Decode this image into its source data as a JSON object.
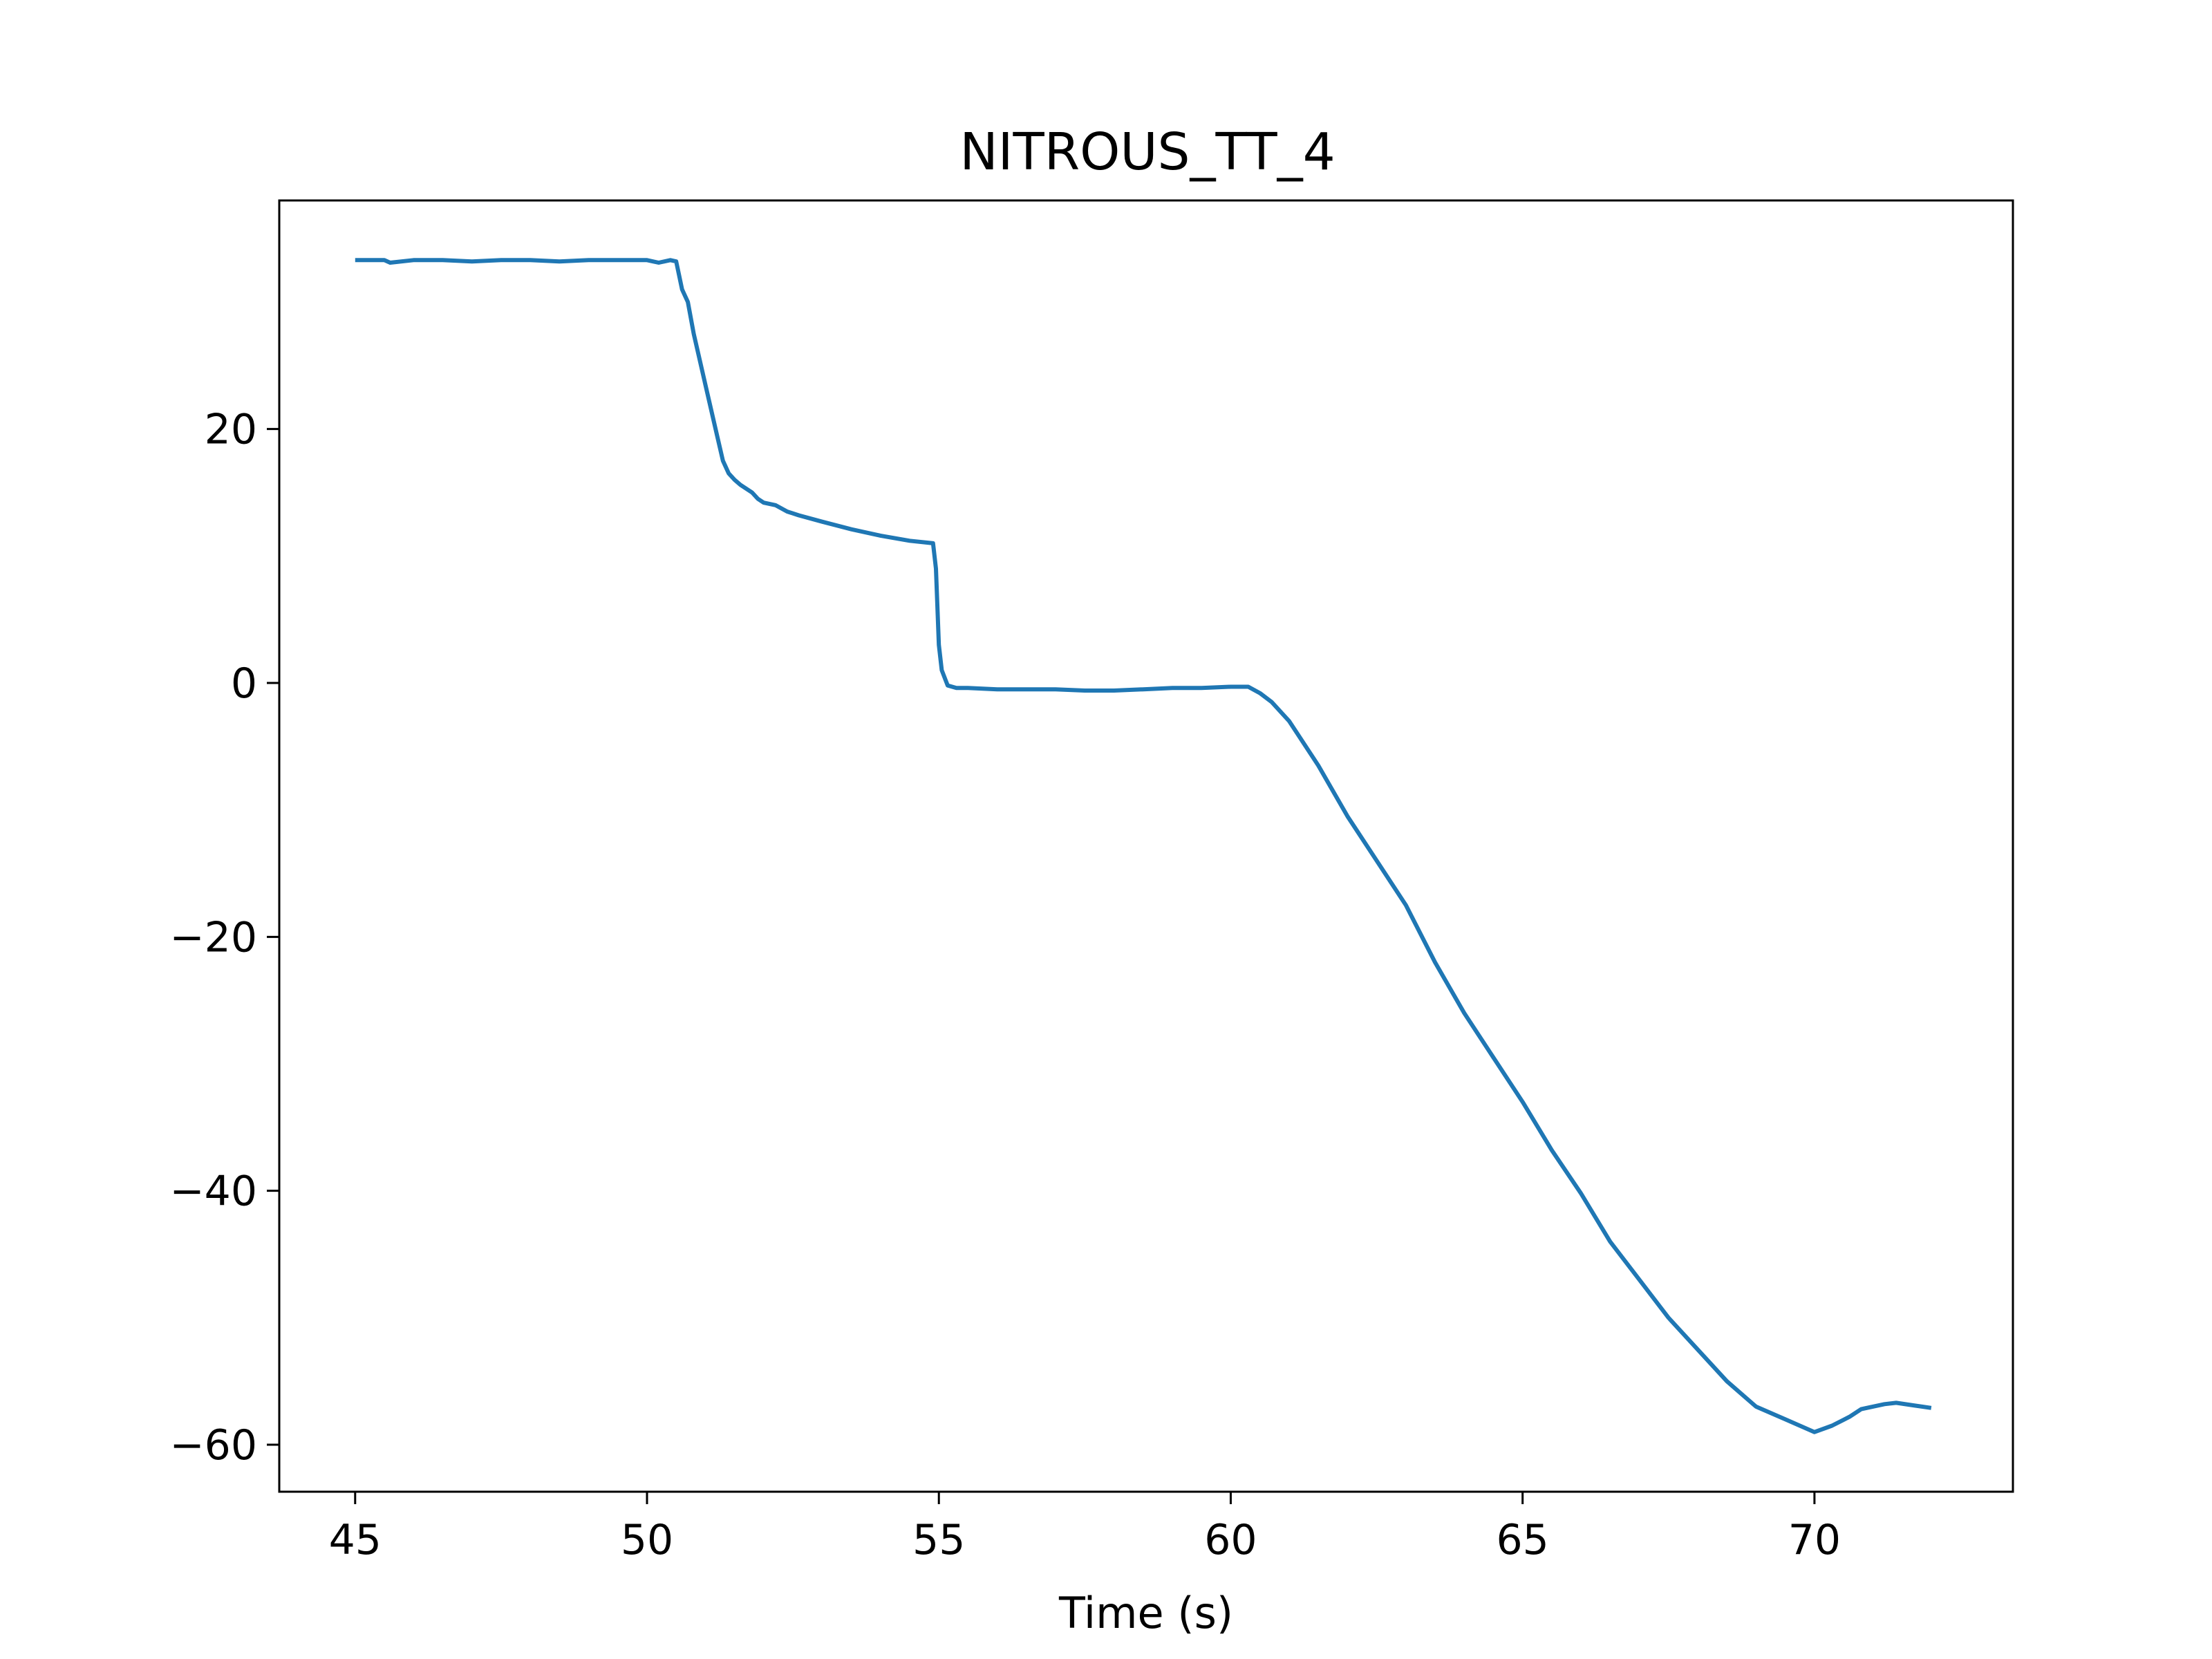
{
  "chart_data": {
    "type": "line",
    "title": "NITROUS_TT_4",
    "xlabel": "Time (s)",
    "ylabel": "",
    "xlim": [
      43.7,
      73.4
    ],
    "ylim": [
      -63.7,
      38.0
    ],
    "xticks": [
      45,
      50,
      55,
      60,
      65,
      70
    ],
    "yticks": [
      20,
      0,
      -20,
      -40,
      -60
    ],
    "xtick_labels": [
      "45",
      "50",
      "55",
      "60",
      "65",
      "70"
    ],
    "ytick_labels": [
      "20",
      "0",
      "−20",
      "−40",
      "−60"
    ],
    "grid": false,
    "series": [
      {
        "color": "#1f77b4",
        "x": [
          45.0,
          45.5,
          45.6,
          46.0,
          46.5,
          47.0,
          47.5,
          48.0,
          48.5,
          49.0,
          49.5,
          50.0,
          50.2,
          50.4,
          50.5,
          50.6,
          50.7,
          50.8,
          51.0,
          51.2,
          51.3,
          51.4,
          51.5,
          51.6,
          51.8,
          51.9,
          52.0,
          52.2,
          52.4,
          52.6,
          53.0,
          53.5,
          54.0,
          54.5,
          54.9,
          54.95,
          55.0,
          55.05,
          55.15,
          55.3,
          55.5,
          56.0,
          56.5,
          57.0,
          57.5,
          58.0,
          58.5,
          59.0,
          59.5,
          60.0,
          60.3,
          60.5,
          60.7,
          61.0,
          61.5,
          62.0,
          62.5,
          63.0,
          63.5,
          64.0,
          64.5,
          65.0,
          65.5,
          66.0,
          66.5,
          67.0,
          67.5,
          68.0,
          68.5,
          69.0,
          69.5,
          70.0,
          70.3,
          70.6,
          70.8,
          71.0,
          71.2,
          71.4,
          71.7,
          72.0
        ],
        "y": [
          33.3,
          33.3,
          33.1,
          33.3,
          33.3,
          33.2,
          33.3,
          33.3,
          33.2,
          33.3,
          33.3,
          33.3,
          33.1,
          33.3,
          33.2,
          31.0,
          30.0,
          27.5,
          23.5,
          19.5,
          17.5,
          16.5,
          16.0,
          15.6,
          15.0,
          14.5,
          14.2,
          14.0,
          13.5,
          13.2,
          12.7,
          12.1,
          11.6,
          11.2,
          11.0,
          9.0,
          3.0,
          1.0,
          -0.2,
          -0.4,
          -0.4,
          -0.5,
          -0.5,
          -0.5,
          -0.6,
          -0.6,
          -0.5,
          -0.4,
          -0.4,
          -0.3,
          -0.3,
          -0.8,
          -1.5,
          -3.0,
          -6.5,
          -10.5,
          -14.0,
          -17.5,
          -22.0,
          -26.0,
          -29.5,
          -33.0,
          -36.8,
          -40.2,
          -44.0,
          -47.0,
          -50.0,
          -52.5,
          -55.0,
          -57.0,
          -58.0,
          -59.0,
          -58.5,
          -57.8,
          -57.2,
          -57.0,
          -56.8,
          -56.7,
          -56.9,
          -57.1
        ]
      }
    ]
  }
}
